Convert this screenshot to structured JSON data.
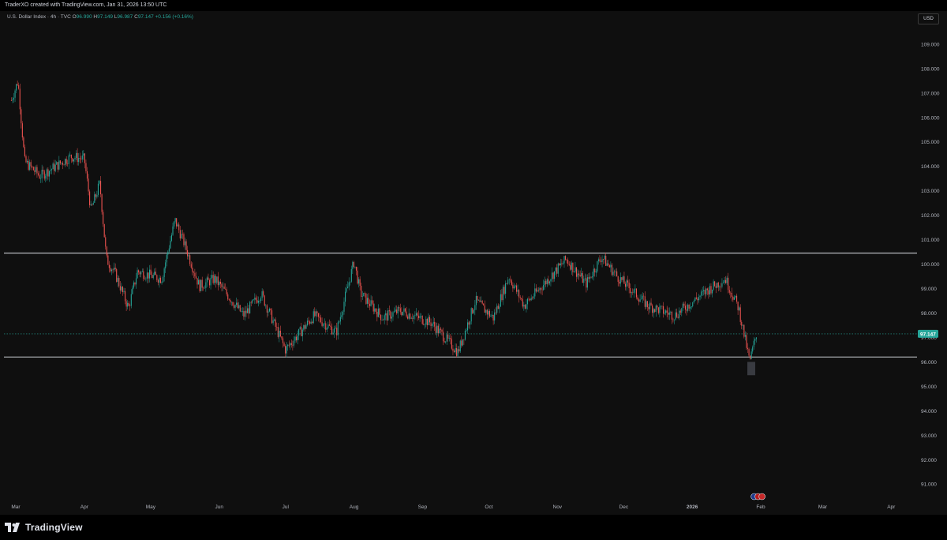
{
  "header": {
    "attribution": "TraderXO created with TradingView.com, Jan 31, 2026 13:50 UTC"
  },
  "legend": {
    "symbol": "U.S. Dollar Index · 4h · TVC",
    "o_label": "O",
    "o_value": "96.990",
    "h_label": "H",
    "h_value": "97.149",
    "l_label": "L",
    "l_value": "96.987",
    "c_label": "C",
    "c_value": "97.147",
    "change": "+0.156 (+0.16%)"
  },
  "currency_button": "USD",
  "footer": {
    "brand": "TradingView"
  },
  "colors": {
    "up": "#26a69a",
    "down": "#ef5350",
    "grid_text": "#b2b5be",
    "background": "#0f0f0f",
    "price_tag": "#26a69a"
  },
  "chart_data": {
    "type": "candlestick",
    "title": "U.S. Dollar Index",
    "interval": "4h",
    "ylim": [
      90.2,
      109.9
    ],
    "y_ticks": [
      "109.000",
      "108.000",
      "107.000",
      "106.000",
      "105.000",
      "104.000",
      "103.000",
      "102.000",
      "101.000",
      "100.000",
      "99.000",
      "98.000",
      "97.000",
      "96.000",
      "95.000",
      "94.000",
      "93.000",
      "92.000",
      "91.000"
    ],
    "x_ticks": [
      "Mar",
      "Apr",
      "May",
      "Jun",
      "Jul",
      "Aug",
      "Sep",
      "Oct",
      "Nov",
      "Dec",
      "2026",
      "Feb",
      "Mar",
      "Apr"
    ],
    "last_price": "97.147",
    "horizontal_lines": [
      100.45,
      96.2
    ],
    "price_path": [
      {
        "x": "2025-02-27",
        "y": 106.7
      },
      {
        "x": "2025-03-02",
        "y": 107.5
      },
      {
        "x": "2025-03-05",
        "y": 104.2
      },
      {
        "x": "2025-03-12",
        "y": 103.6
      },
      {
        "x": "2025-03-26",
        "y": 104.4
      },
      {
        "x": "2025-04-01",
        "y": 104.3
      },
      {
        "x": "2025-04-04",
        "y": 102.2
      },
      {
        "x": "2025-04-08",
        "y": 103.3
      },
      {
        "x": "2025-04-11",
        "y": 100.2
      },
      {
        "x": "2025-04-15",
        "y": 99.6
      },
      {
        "x": "2025-04-21",
        "y": 98.2
      },
      {
        "x": "2025-04-25",
        "y": 99.7
      },
      {
        "x": "2025-05-06",
        "y": 99.4
      },
      {
        "x": "2025-05-12",
        "y": 101.8
      },
      {
        "x": "2025-05-16",
        "y": 100.9
      },
      {
        "x": "2025-05-23",
        "y": 99.1
      },
      {
        "x": "2025-05-30",
        "y": 99.4
      },
      {
        "x": "2025-06-12",
        "y": 97.9
      },
      {
        "x": "2025-06-20",
        "y": 98.8
      },
      {
        "x": "2025-06-30",
        "y": 96.7
      },
      {
        "x": "2025-07-01",
        "y": 96.5
      },
      {
        "x": "2025-07-14",
        "y": 97.9
      },
      {
        "x": "2025-07-24",
        "y": 97.2
      },
      {
        "x": "2025-08-01",
        "y": 100.1
      },
      {
        "x": "2025-08-04",
        "y": 98.8
      },
      {
        "x": "2025-08-14",
        "y": 97.8
      },
      {
        "x": "2025-08-22",
        "y": 98.1
      },
      {
        "x": "2025-09-05",
        "y": 97.6
      },
      {
        "x": "2025-09-17",
        "y": 96.4
      },
      {
        "x": "2025-09-25",
        "y": 98.5
      },
      {
        "x": "2025-10-03",
        "y": 97.8
      },
      {
        "x": "2025-10-10",
        "y": 99.5
      },
      {
        "x": "2025-10-17",
        "y": 98.3
      },
      {
        "x": "2025-11-05",
        "y": 100.2
      },
      {
        "x": "2025-11-14",
        "y": 99.2
      },
      {
        "x": "2025-11-21",
        "y": 100.3
      },
      {
        "x": "2025-11-28",
        "y": 99.5
      },
      {
        "x": "2025-12-12",
        "y": 98.3
      },
      {
        "x": "2025-12-24",
        "y": 97.9
      },
      {
        "x": "2026-01-09",
        "y": 99.0
      },
      {
        "x": "2026-01-16",
        "y": 99.4
      },
      {
        "x": "2026-01-22",
        "y": 98.2
      },
      {
        "x": "2026-01-27",
        "y": 96.0
      },
      {
        "x": "2026-01-30",
        "y": 97.147
      }
    ]
  }
}
